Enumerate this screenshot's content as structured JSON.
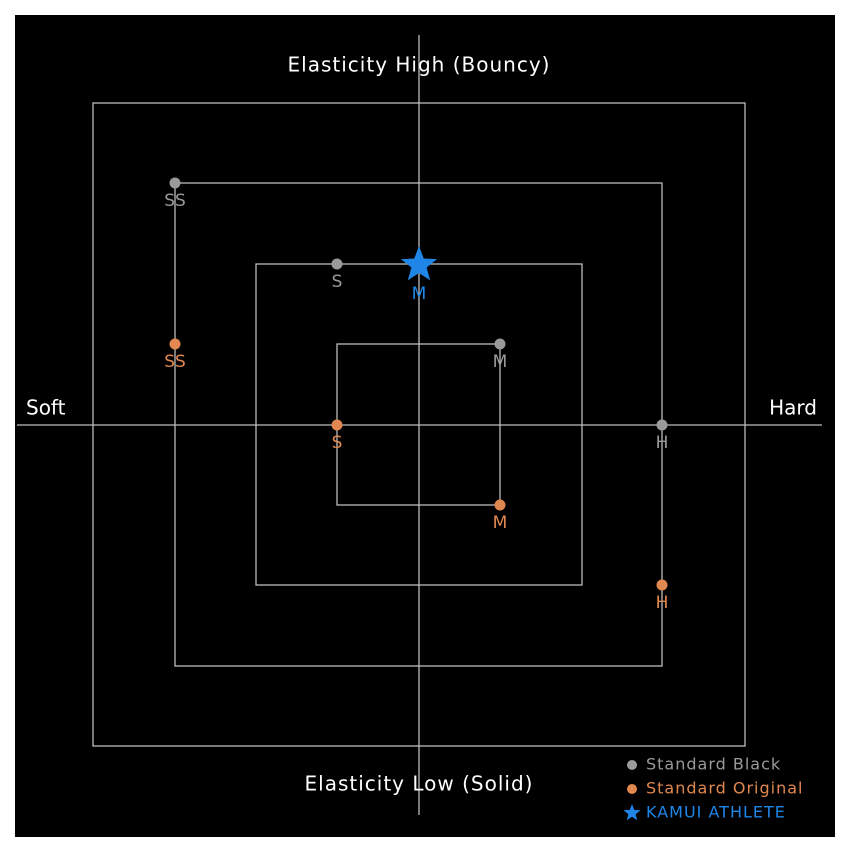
{
  "axes": {
    "top": "Elasticity High (Bouncy)",
    "bottom": "Elasticity Low (Solid)",
    "left": "Soft",
    "right": "Hard"
  },
  "series": [
    {
      "name": "Standard Black",
      "color": "#9a9a9a",
      "points": [
        "SS",
        "S",
        "M",
        "H"
      ]
    },
    {
      "name": "Standard Original",
      "color": "#e0884f",
      "points": [
        "SS",
        "S",
        "M",
        "H"
      ]
    },
    {
      "name": "KAMUI ATHLETE",
      "color": "#1f86e8",
      "points": [
        "M"
      ]
    }
  ]
}
